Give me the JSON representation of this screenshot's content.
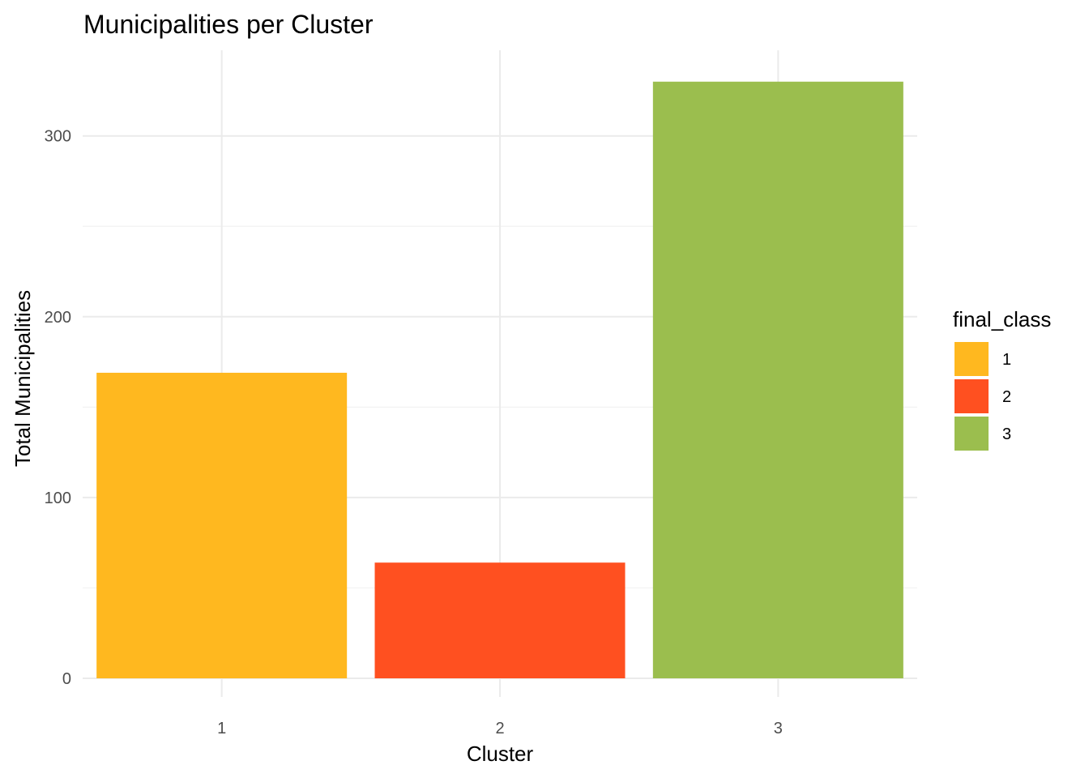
{
  "chart_data": {
    "type": "bar",
    "title": "Municipalities per Cluster",
    "xlabel": "Cluster",
    "ylabel": "Total Municipalities",
    "categories": [
      "1",
      "2",
      "3"
    ],
    "values": [
      169,
      64,
      330
    ],
    "bar_colors": [
      "#FFB81F",
      "#FF5020",
      "#9BBE4E"
    ],
    "ylim": [
      0,
      346
    ],
    "y_ticks": [
      0,
      100,
      200,
      300
    ],
    "y_minor_ticks": [
      50,
      150,
      250
    ],
    "grid": true,
    "legend": {
      "title": "final_class",
      "position": "right",
      "entries": [
        {
          "label": "1",
          "color": "#FFB81F"
        },
        {
          "label": "2",
          "color": "#FF5020"
        },
        {
          "label": "3",
          "color": "#9BBE4E"
        }
      ]
    }
  }
}
